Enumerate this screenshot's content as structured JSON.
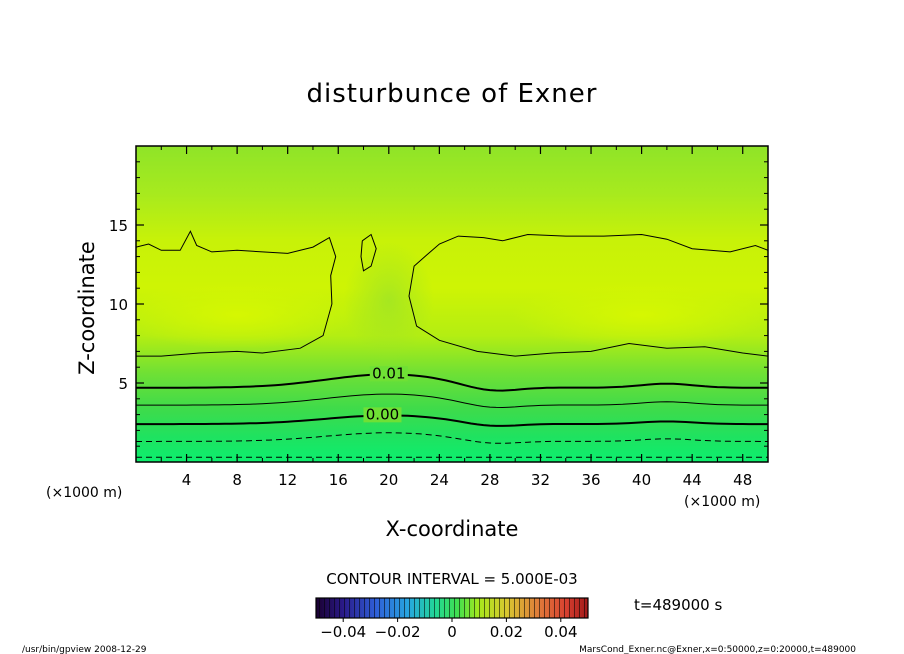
{
  "chart_data": {
    "type": "heatmap",
    "title": "disturbunce of Exner",
    "xlabel": "X-coordinate",
    "ylabel": "Z-coordinate",
    "x_unit": "(×1000 m)",
    "y_unit": "(×1000 m)",
    "xlim": [
      0,
      50
    ],
    "ylim": [
      0,
      20
    ],
    "x_ticks": [
      4,
      8,
      12,
      16,
      20,
      24,
      28,
      32,
      36,
      40,
      44,
      48
    ],
    "x_tick_labels": [
      "4",
      "8",
      "12",
      "16",
      "20",
      "24",
      "28",
      "32",
      "36",
      "40",
      "44",
      "48"
    ],
    "y_ticks": [
      5,
      10,
      15
    ],
    "y_tick_labels": [
      "5",
      "10",
      "15"
    ],
    "contour_interval_text": "CONTOUR INTERVAL = 5.000E-03",
    "time_text": "t=489000 s",
    "contour_labels": [
      {
        "text": "0.01",
        "x": 20.0,
        "z": 5.3
      },
      {
        "text": "0.00",
        "x": 19.5,
        "z": 2.7
      }
    ],
    "colorbar": {
      "range": [
        -0.05,
        0.05
      ],
      "tick_values": [
        -0.04,
        -0.02,
        0,
        0.02,
        0.04
      ],
      "tick_labels": [
        "−0.04",
        "−0.02",
        "0",
        "0.02",
        "0.04"
      ]
    },
    "footer_left": "/usr/bin/gpview   2008-12-29",
    "footer_right": "MarsCond_Exner.nc@Exner,x=0:50000,z=0:20000,t=489000"
  }
}
